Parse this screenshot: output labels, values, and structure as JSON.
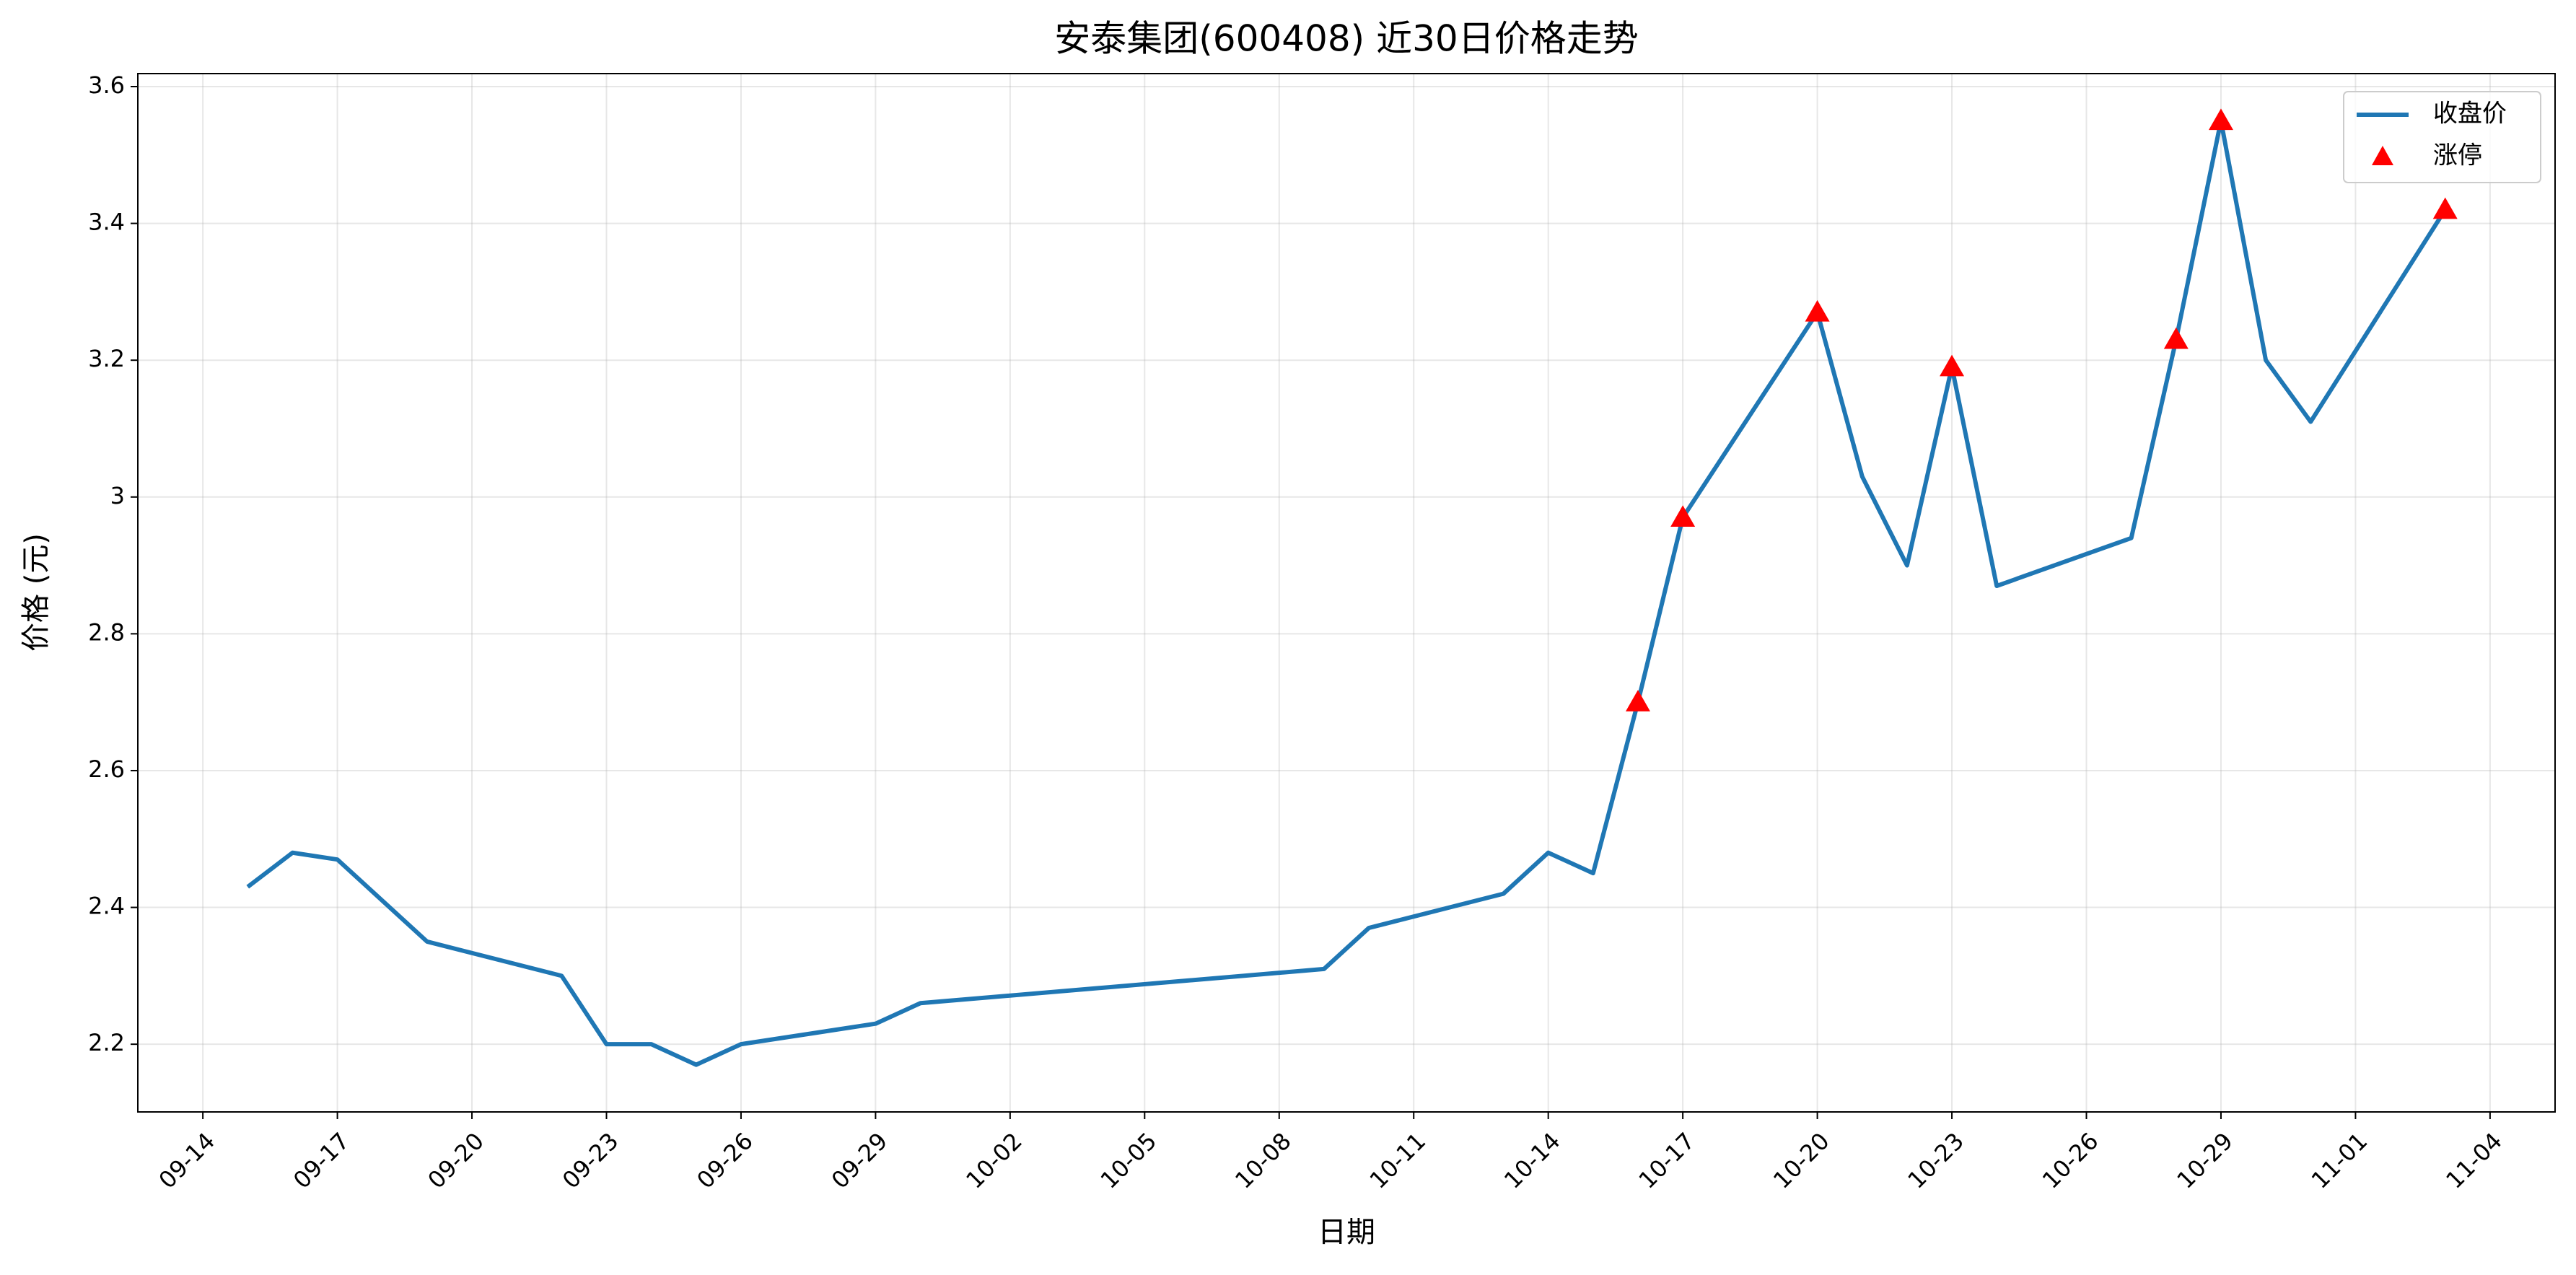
{
  "chart_data": {
    "type": "line",
    "title": "安泰集团(600408) 近30日价格走势",
    "xlabel": "日期",
    "ylabel": "价格 (元)",
    "x": [
      "09-15",
      "09-16",
      "09-17",
      "09-19",
      "09-22",
      "09-23",
      "09-24",
      "09-25",
      "09-26",
      "09-29",
      "09-30",
      "10-09",
      "10-10",
      "10-13",
      "10-14",
      "10-15",
      "10-16",
      "10-17",
      "10-20",
      "10-21",
      "10-22",
      "10-23",
      "10-24",
      "10-27",
      "10-28",
      "10-29",
      "10-30",
      "10-31",
      "11-03"
    ],
    "series": [
      {
        "name": "收盘价",
        "type": "line",
        "color": "#1f77b4",
        "values": [
          2.43,
          2.48,
          2.47,
          2.35,
          2.3,
          2.2,
          2.2,
          2.17,
          2.2,
          2.23,
          2.26,
          2.31,
          2.37,
          2.42,
          2.48,
          2.45,
          2.7,
          2.97,
          3.27,
          3.03,
          2.9,
          3.19,
          2.87,
          2.94,
          3.23,
          3.55,
          3.2,
          3.11,
          3.42
        ]
      },
      {
        "name": "涨停",
        "type": "scatter",
        "color": "#ff0000",
        "marker": "triangle",
        "x": [
          "10-16",
          "10-17",
          "10-20",
          "10-23",
          "10-28",
          "10-29",
          "11-03"
        ],
        "values": [
          2.7,
          2.97,
          3.27,
          3.19,
          3.23,
          3.55,
          3.42
        ]
      }
    ],
    "xticks": [
      "09-14",
      "09-17",
      "09-20",
      "09-23",
      "09-26",
      "09-29",
      "10-02",
      "10-05",
      "10-08",
      "10-11",
      "10-14",
      "10-17",
      "10-20",
      "10-23",
      "10-26",
      "10-29",
      "11-01",
      "11-04"
    ],
    "ylim": [
      2.101,
      3.619
    ],
    "yticks": [
      2.2,
      2.4,
      2.6,
      2.8,
      3.0,
      3.2,
      3.4,
      3.6
    ],
    "grid": true,
    "legend": "upper right"
  }
}
